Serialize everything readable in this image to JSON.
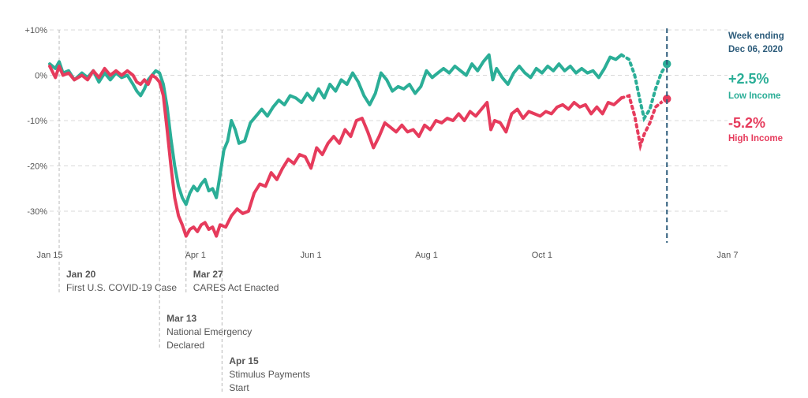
{
  "chart_data": {
    "type": "line",
    "x_axis": {
      "ticks": [
        "Jan 15",
        "Apr 1",
        "Jun 1",
        "Aug 1",
        "Oct 1",
        "Jan 7"
      ],
      "tick_dates": [
        "2020-01-15",
        "2020-04-01",
        "2020-06-01",
        "2020-08-01",
        "2020-10-01",
        "2021-01-07"
      ],
      "range": [
        "2020-01-15",
        "2021-01-07"
      ]
    },
    "y_axis": {
      "ticks": [
        "+10%",
        "0%",
        "-10%",
        "-20%",
        "-30%"
      ],
      "tick_values": [
        10,
        0,
        -10,
        -20,
        -30
      ],
      "ylim": [
        -37,
        10
      ],
      "unit": "%"
    },
    "grid": "horizontal dashed",
    "series": [
      {
        "name": "Low Income",
        "color": "#2bae97",
        "points": [
          [
            "2020-01-15",
            2.5
          ],
          [
            "2020-01-18",
            1.5
          ],
          [
            "2020-01-20",
            3.0
          ],
          [
            "2020-01-22",
            0.5
          ],
          [
            "2020-01-25",
            1.0
          ],
          [
            "2020-01-28",
            -1.0
          ],
          [
            "2020-02-01",
            0.5
          ],
          [
            "2020-02-04",
            -0.5
          ],
          [
            "2020-02-07",
            1.0
          ],
          [
            "2020-02-10",
            -1.5
          ],
          [
            "2020-02-13",
            0.5
          ],
          [
            "2020-02-16",
            -1.0
          ],
          [
            "2020-02-19",
            0.5
          ],
          [
            "2020-02-22",
            -0.5
          ],
          [
            "2020-02-25",
            0.0
          ],
          [
            "2020-02-28",
            -2.0
          ],
          [
            "2020-03-01",
            -3.5
          ],
          [
            "2020-03-03",
            -4.5
          ],
          [
            "2020-03-05",
            -3.0
          ],
          [
            "2020-03-07",
            -1.0
          ],
          [
            "2020-03-09",
            0.0
          ],
          [
            "2020-03-11",
            1.0
          ],
          [
            "2020-03-13",
            0.5
          ],
          [
            "2020-03-15",
            -2.0
          ],
          [
            "2020-03-17",
            -7.0
          ],
          [
            "2020-03-19",
            -14.0
          ],
          [
            "2020-03-21",
            -20.0
          ],
          [
            "2020-03-23",
            -24.5
          ],
          [
            "2020-03-25",
            -27.0
          ],
          [
            "2020-03-27",
            -28.5
          ],
          [
            "2020-03-29",
            -26.0
          ],
          [
            "2020-03-31",
            -24.5
          ],
          [
            "2020-04-02",
            -25.5
          ],
          [
            "2020-04-04",
            -24.0
          ],
          [
            "2020-04-06",
            -23.0
          ],
          [
            "2020-04-08",
            -25.5
          ],
          [
            "2020-04-10",
            -25.0
          ],
          [
            "2020-04-12",
            -27.0
          ],
          [
            "2020-04-14",
            -22.0
          ],
          [
            "2020-04-16",
            -16.5
          ],
          [
            "2020-04-18",
            -14.5
          ],
          [
            "2020-04-20",
            -10.0
          ],
          [
            "2020-04-22",
            -12.0
          ],
          [
            "2020-04-24",
            -15.0
          ],
          [
            "2020-04-27",
            -14.5
          ],
          [
            "2020-04-30",
            -10.5
          ],
          [
            "2020-05-03",
            -9.0
          ],
          [
            "2020-05-06",
            -7.5
          ],
          [
            "2020-05-09",
            -9.0
          ],
          [
            "2020-05-12",
            -7.0
          ],
          [
            "2020-05-15",
            -5.5
          ],
          [
            "2020-05-18",
            -6.5
          ],
          [
            "2020-05-21",
            -4.5
          ],
          [
            "2020-05-24",
            -5.0
          ],
          [
            "2020-05-27",
            -6.0
          ],
          [
            "2020-05-30",
            -4.0
          ],
          [
            "2020-06-02",
            -5.5
          ],
          [
            "2020-06-05",
            -3.0
          ],
          [
            "2020-06-08",
            -5.0
          ],
          [
            "2020-06-11",
            -2.0
          ],
          [
            "2020-06-14",
            -3.5
          ],
          [
            "2020-06-17",
            -1.0
          ],
          [
            "2020-06-20",
            -2.0
          ],
          [
            "2020-06-23",
            0.5
          ],
          [
            "2020-06-26",
            -1.5
          ],
          [
            "2020-06-29",
            -4.5
          ],
          [
            "2020-07-02",
            -6.5
          ],
          [
            "2020-07-05",
            -4.0
          ],
          [
            "2020-07-08",
            0.5
          ],
          [
            "2020-07-11",
            -1.0
          ],
          [
            "2020-07-14",
            -3.5
          ],
          [
            "2020-07-17",
            -2.5
          ],
          [
            "2020-07-20",
            -3.0
          ],
          [
            "2020-07-23",
            -2.0
          ],
          [
            "2020-07-26",
            -4.0
          ],
          [
            "2020-07-29",
            -2.5
          ],
          [
            "2020-08-01",
            1.0
          ],
          [
            "2020-08-04",
            -0.5
          ],
          [
            "2020-08-07",
            0.5
          ],
          [
            "2020-08-10",
            1.5
          ],
          [
            "2020-08-13",
            0.5
          ],
          [
            "2020-08-16",
            2.0
          ],
          [
            "2020-08-19",
            1.0
          ],
          [
            "2020-08-22",
            0.0
          ],
          [
            "2020-08-25",
            2.5
          ],
          [
            "2020-08-28",
            1.0
          ],
          [
            "2020-08-31",
            3.0
          ],
          [
            "2020-09-03",
            4.5
          ],
          [
            "2020-09-05",
            -1.0
          ],
          [
            "2020-09-07",
            1.5
          ],
          [
            "2020-09-10",
            -0.5
          ],
          [
            "2020-09-13",
            -2.0
          ],
          [
            "2020-09-16",
            0.5
          ],
          [
            "2020-09-19",
            2.0
          ],
          [
            "2020-09-22",
            0.5
          ],
          [
            "2020-09-25",
            -0.5
          ],
          [
            "2020-09-28",
            1.5
          ],
          [
            "2020-10-01",
            0.5
          ],
          [
            "2020-10-04",
            2.0
          ],
          [
            "2020-10-07",
            1.0
          ],
          [
            "2020-10-10",
            2.5
          ],
          [
            "2020-10-13",
            1.0
          ],
          [
            "2020-10-16",
            2.0
          ],
          [
            "2020-10-19",
            0.5
          ],
          [
            "2020-10-22",
            1.5
          ],
          [
            "2020-10-25",
            0.5
          ],
          [
            "2020-10-28",
            1.0
          ],
          [
            "2020-10-31",
            -0.5
          ],
          [
            "2020-11-03",
            1.5
          ],
          [
            "2020-11-06",
            4.0
          ],
          [
            "2020-11-09",
            3.5
          ],
          [
            "2020-11-12",
            4.5
          ]
        ],
        "projected_points": [
          [
            "2020-11-12",
            4.5
          ],
          [
            "2020-11-16",
            3.5
          ],
          [
            "2020-11-19",
            0.0
          ],
          [
            "2020-11-22",
            -6.0
          ],
          [
            "2020-11-24",
            -9.5
          ],
          [
            "2020-11-27",
            -7.5
          ],
          [
            "2020-11-30",
            -3.0
          ],
          [
            "2020-12-03",
            0.5
          ],
          [
            "2020-12-06",
            2.5
          ]
        ],
        "end_value": "+2.5%",
        "end_label": "Low Income"
      },
      {
        "name": "High Income",
        "color": "#e63b5c",
        "points": [
          [
            "2020-01-15",
            2.0
          ],
          [
            "2020-01-18",
            -0.5
          ],
          [
            "2020-01-20",
            2.0
          ],
          [
            "2020-01-22",
            0.0
          ],
          [
            "2020-01-25",
            0.5
          ],
          [
            "2020-01-28",
            -1.0
          ],
          [
            "2020-02-01",
            0.0
          ],
          [
            "2020-02-04",
            -1.0
          ],
          [
            "2020-02-07",
            1.0
          ],
          [
            "2020-02-10",
            -0.5
          ],
          [
            "2020-02-13",
            1.5
          ],
          [
            "2020-02-16",
            0.0
          ],
          [
            "2020-02-19",
            1.0
          ],
          [
            "2020-02-22",
            0.0
          ],
          [
            "2020-02-25",
            1.0
          ],
          [
            "2020-02-28",
            0.0
          ],
          [
            "2020-03-01",
            -1.5
          ],
          [
            "2020-03-03",
            -2.0
          ],
          [
            "2020-03-05",
            -1.0
          ],
          [
            "2020-03-07",
            -2.0
          ],
          [
            "2020-03-09",
            0.0
          ],
          [
            "2020-03-11",
            -0.5
          ],
          [
            "2020-03-13",
            -1.5
          ],
          [
            "2020-03-15",
            -4.5
          ],
          [
            "2020-03-17",
            -12.0
          ],
          [
            "2020-03-19",
            -20.0
          ],
          [
            "2020-03-21",
            -27.0
          ],
          [
            "2020-03-23",
            -31.0
          ],
          [
            "2020-03-25",
            -33.0
          ],
          [
            "2020-03-27",
            -35.5
          ],
          [
            "2020-03-29",
            -34.0
          ],
          [
            "2020-03-31",
            -33.5
          ],
          [
            "2020-04-02",
            -34.5
          ],
          [
            "2020-04-04",
            -33.0
          ],
          [
            "2020-04-06",
            -32.5
          ],
          [
            "2020-04-08",
            -34.0
          ],
          [
            "2020-04-10",
            -33.5
          ],
          [
            "2020-04-12",
            -35.5
          ],
          [
            "2020-04-14",
            -33.0
          ],
          [
            "2020-04-17",
            -33.5
          ],
          [
            "2020-04-20",
            -31.0
          ],
          [
            "2020-04-23",
            -29.5
          ],
          [
            "2020-04-26",
            -30.5
          ],
          [
            "2020-04-29",
            -30.0
          ],
          [
            "2020-05-02",
            -26.0
          ],
          [
            "2020-05-05",
            -24.0
          ],
          [
            "2020-05-08",
            -24.5
          ],
          [
            "2020-05-11",
            -21.5
          ],
          [
            "2020-05-14",
            -23.0
          ],
          [
            "2020-05-17",
            -20.5
          ],
          [
            "2020-05-20",
            -18.5
          ],
          [
            "2020-05-23",
            -19.5
          ],
          [
            "2020-05-26",
            -17.5
          ],
          [
            "2020-05-29",
            -18.0
          ],
          [
            "2020-06-01",
            -20.5
          ],
          [
            "2020-06-04",
            -16.0
          ],
          [
            "2020-06-07",
            -17.5
          ],
          [
            "2020-06-10",
            -15.0
          ],
          [
            "2020-06-13",
            -13.5
          ],
          [
            "2020-06-16",
            -15.0
          ],
          [
            "2020-06-19",
            -12.0
          ],
          [
            "2020-06-22",
            -13.5
          ],
          [
            "2020-06-25",
            -10.0
          ],
          [
            "2020-06-28",
            -9.5
          ],
          [
            "2020-07-01",
            -12.5
          ],
          [
            "2020-07-04",
            -16.0
          ],
          [
            "2020-07-07",
            -13.5
          ],
          [
            "2020-07-10",
            -10.5
          ],
          [
            "2020-07-13",
            -11.5
          ],
          [
            "2020-07-16",
            -12.5
          ],
          [
            "2020-07-19",
            -11.0
          ],
          [
            "2020-07-22",
            -12.5
          ],
          [
            "2020-07-25",
            -12.0
          ],
          [
            "2020-07-28",
            -13.5
          ],
          [
            "2020-07-31",
            -11.0
          ],
          [
            "2020-08-03",
            -12.0
          ],
          [
            "2020-08-06",
            -10.0
          ],
          [
            "2020-08-09",
            -10.5
          ],
          [
            "2020-08-12",
            -9.5
          ],
          [
            "2020-08-15",
            -10.0
          ],
          [
            "2020-08-18",
            -8.5
          ],
          [
            "2020-08-21",
            -10.0
          ],
          [
            "2020-08-24",
            -8.0
          ],
          [
            "2020-08-27",
            -9.0
          ],
          [
            "2020-08-30",
            -7.5
          ],
          [
            "2020-09-02",
            -6.0
          ],
          [
            "2020-09-04",
            -12.0
          ],
          [
            "2020-09-06",
            -10.0
          ],
          [
            "2020-09-09",
            -10.5
          ],
          [
            "2020-09-12",
            -12.5
          ],
          [
            "2020-09-15",
            -8.5
          ],
          [
            "2020-09-18",
            -7.5
          ],
          [
            "2020-09-21",
            -9.5
          ],
          [
            "2020-09-24",
            -8.0
          ],
          [
            "2020-09-27",
            -8.5
          ],
          [
            "2020-09-30",
            -9.0
          ],
          [
            "2020-10-03",
            -8.0
          ],
          [
            "2020-10-06",
            -8.5
          ],
          [
            "2020-10-09",
            -7.0
          ],
          [
            "2020-10-12",
            -6.5
          ],
          [
            "2020-10-15",
            -7.5
          ],
          [
            "2020-10-18",
            -6.0
          ],
          [
            "2020-10-21",
            -7.0
          ],
          [
            "2020-10-24",
            -6.5
          ],
          [
            "2020-10-27",
            -8.5
          ],
          [
            "2020-10-30",
            -7.0
          ],
          [
            "2020-11-02",
            -8.5
          ],
          [
            "2020-11-05",
            -6.0
          ],
          [
            "2020-11-08",
            -6.5
          ],
          [
            "2020-11-12",
            -5.0
          ]
        ],
        "projected_points": [
          [
            "2020-11-12",
            -5.0
          ],
          [
            "2020-11-16",
            -4.5
          ],
          [
            "2020-11-19",
            -9.0
          ],
          [
            "2020-11-22",
            -15.5
          ],
          [
            "2020-11-24",
            -13.0
          ],
          [
            "2020-11-27",
            -10.5
          ],
          [
            "2020-11-30",
            -7.0
          ],
          [
            "2020-12-03",
            -6.0
          ],
          [
            "2020-12-06",
            -5.2
          ]
        ],
        "end_value": "-5.2%",
        "end_label": "High Income"
      }
    ],
    "events": [
      {
        "date": "2020-01-20",
        "date_label": "Jan 20",
        "lines": [
          "First U.S. COVID-19 Case"
        ],
        "row": 0
      },
      {
        "date": "2020-03-13",
        "date_label": "Mar 13",
        "lines": [
          "National Emergency",
          "Declared"
        ],
        "row": 1
      },
      {
        "date": "2020-03-27",
        "date_label": "Mar 27",
        "lines": [
          "CARES Act Enacted"
        ],
        "row": 0
      },
      {
        "date": "2020-04-15",
        "date_label": "Apr 15",
        "lines": [
          "Stimulus Payments",
          "Start"
        ],
        "row": 2
      }
    ],
    "reference": {
      "date": "2020-12-06",
      "label_lines": [
        "Week ending",
        "Dec 06, 2020"
      ],
      "color": "#2d5c7b"
    }
  }
}
